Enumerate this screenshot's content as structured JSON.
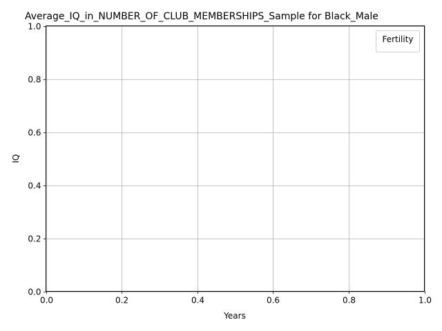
{
  "chart_data": {
    "type": "line",
    "title": "Average_IQ_in_NUMBER_OF_CLUB_MEMBERSHIPS_Sample for Black_Male",
    "xlabel": "Years",
    "ylabel": "IQ",
    "xlim": [
      0.0,
      1.0
    ],
    "ylim": [
      0.0,
      1.0
    ],
    "xticks": [
      "0.0",
      "0.2",
      "0.4",
      "0.6",
      "0.8",
      "1.0"
    ],
    "yticks": [
      "0.0",
      "0.2",
      "0.4",
      "0.6",
      "0.8",
      "1.0"
    ],
    "grid": true,
    "legend": {
      "title": "Fertility",
      "placement": "top-right",
      "entries": []
    },
    "series": []
  },
  "colors": {
    "grid": "#b0b0b0",
    "axes": "#000000",
    "background": "#ffffff",
    "legend_border": "#cccccc"
  }
}
